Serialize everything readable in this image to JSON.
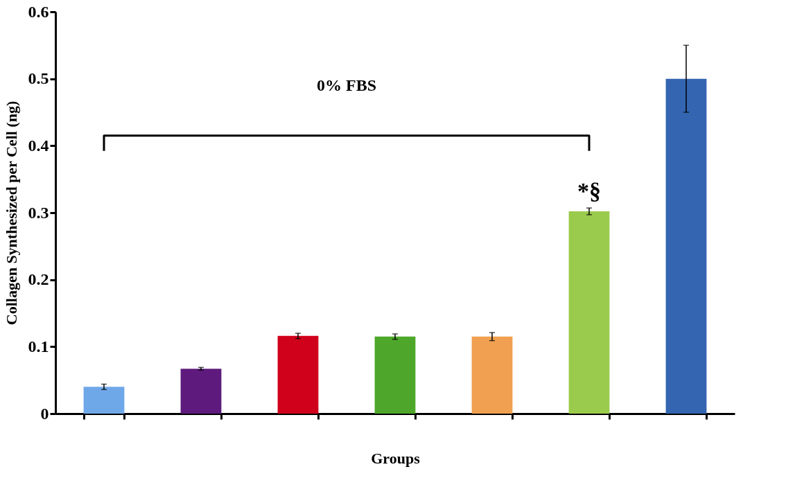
{
  "chart_data": {
    "type": "bar",
    "xlabel": "Groups",
    "ylabel": "Collagen Synthesized per Cell (ng)",
    "categories": [
      null,
      null,
      null,
      null,
      null,
      null,
      null
    ],
    "values": [
      0.04,
      0.067,
      0.116,
      0.115,
      0.115,
      0.302,
      0.5
    ],
    "colors": [
      "#6fa8e8",
      "#5e1a7c",
      "#d0021b",
      "#4ea72a",
      "#f0a050",
      "#9acb4c",
      "#3465b0"
    ],
    "errors": [
      0.004,
      0.002,
      0.004,
      0.004,
      0.006,
      0.005,
      0.05
    ],
    "ylim": [
      0,
      0.6
    ],
    "yticks": [
      0,
      0.1,
      0.2,
      0.3,
      0.4,
      0.5,
      0.6
    ],
    "grid": false,
    "annotations": [
      "0% FBS",
      "*§"
    ]
  }
}
